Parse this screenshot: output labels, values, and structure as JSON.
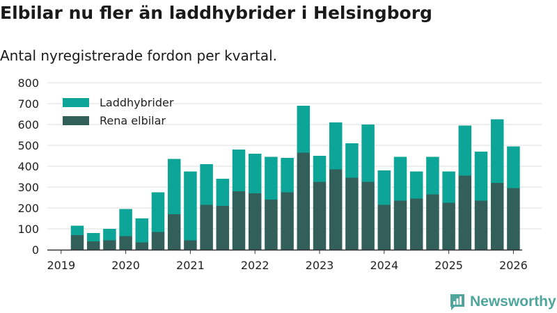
{
  "title": "Elbilar nu fler än laddhybrider i Helsingborg",
  "subtitle": "Antal nyregistrerade fordon per kvartal.",
  "brand": {
    "name": "Newsworthy",
    "icon": "newsworthy-logo-icon"
  },
  "colors": {
    "laddhybrider": "#0ca597",
    "elbilar": "#335f5b",
    "grid": "#dddddd",
    "axis": "#333333",
    "brand": "#4ea69d"
  },
  "chart_data": {
    "type": "bar",
    "stacked": true,
    "categories": [
      "2019 Q2",
      "2019 Q3",
      "2019 Q4",
      "2020 Q1",
      "2020 Q2",
      "2020 Q3",
      "2020 Q4",
      "2021 Q1",
      "2021 Q2",
      "2021 Q3",
      "2021 Q4",
      "2022 Q1",
      "2022 Q2",
      "2022 Q3",
      "2022 Q4",
      "2023 Q1",
      "2023 Q2",
      "2023 Q3",
      "2023 Q4",
      "2024 Q1",
      "2024 Q2",
      "2024 Q3",
      "2024 Q4",
      "2025 Q1",
      "2025 Q2",
      "2025 Q3",
      "2025 Q4",
      "2026 Q1"
    ],
    "series": [
      {
        "name": "Rena elbilar",
        "values": [
          70,
          40,
          45,
          65,
          35,
          85,
          170,
          45,
          215,
          210,
          280,
          270,
          240,
          275,
          465,
          325,
          385,
          345,
          325,
          215,
          235,
          245,
          265,
          225,
          355,
          235,
          320,
          295
        ]
      },
      {
        "name": "Laddhybrider",
        "values": [
          45,
          40,
          55,
          130,
          115,
          190,
          265,
          330,
          195,
          130,
          200,
          190,
          205,
          165,
          225,
          125,
          225,
          165,
          275,
          165,
          210,
          130,
          180,
          150,
          240,
          235,
          305,
          200
        ]
      }
    ],
    "legend": [
      "Laddhybrider",
      "Rena elbilar"
    ],
    "legend_position": "top-left",
    "x_ticks": [
      "2019",
      "2020",
      "2021",
      "2022",
      "2023",
      "2024",
      "2025",
      "2026"
    ],
    "y_ticks": [
      "0",
      "100",
      "200",
      "300",
      "400",
      "500",
      "600",
      "700",
      "800"
    ],
    "ylim": [
      0,
      800
    ],
    "xlabel": "",
    "ylabel": "",
    "grid": true
  }
}
